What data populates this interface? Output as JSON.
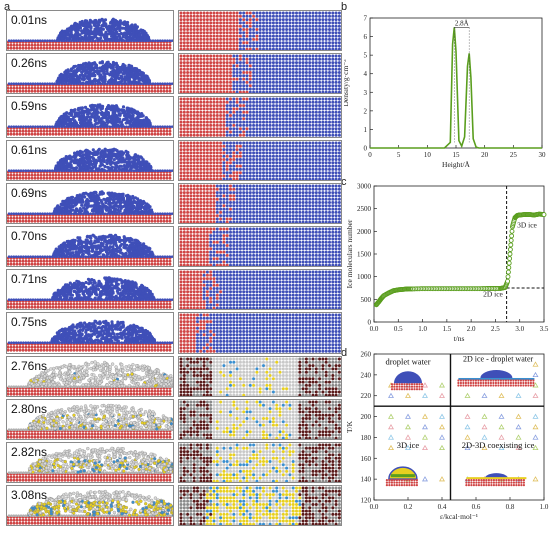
{
  "panel_labels": {
    "a": "a",
    "b": "b",
    "c": "c",
    "d": "d"
  },
  "snapshots": [
    {
      "time": "0.01ns",
      "phase": "liquid",
      "top_fraction": 0.0
    },
    {
      "time": "0.26ns",
      "phase": "liquid",
      "top_fraction": 0.0
    },
    {
      "time": "0.59ns",
      "phase": "liquid",
      "top_fraction": 0.0
    },
    {
      "time": "0.61ns",
      "phase": "liquid",
      "top_fraction": 0.0
    },
    {
      "time": "0.69ns",
      "phase": "liquid",
      "top_fraction": 0.0
    },
    {
      "time": "0.70ns",
      "phase": "liquid",
      "top_fraction": 0.0
    },
    {
      "time": "0.71ns",
      "phase": "liquid",
      "top_fraction": 0.0
    },
    {
      "time": "0.75ns",
      "phase": "liquid",
      "top_fraction": 0.0
    },
    {
      "time": "2.76ns",
      "phase": "ice",
      "top_fraction": 0.05
    },
    {
      "time": "2.80ns",
      "phase": "ice",
      "top_fraction": 0.2
    },
    {
      "time": "2.82ns",
      "phase": "ice",
      "top_fraction": 0.35
    },
    {
      "time": "3.08ns",
      "phase": "ice",
      "top_fraction": 0.6
    }
  ],
  "colors": {
    "water": "#3f4fb8",
    "substrate": "#d04545",
    "ice": "#d9d9d9",
    "ice_yellow": "#e8d020",
    "ice_blue": "#3a8fd0",
    "green": "#5a9e1e"
  },
  "chart_data": [
    {
      "type": "line",
      "panel": "b",
      "xlabel": "Height/Å",
      "ylabel": "Density/g·cm⁻³",
      "xlim": [
        0,
        30
      ],
      "ylim": [
        0,
        7
      ],
      "xticks": [
        0,
        5,
        10,
        15,
        20,
        25,
        30
      ],
      "yticks": [
        0,
        1,
        2,
        3,
        4,
        5,
        6,
        7
      ],
      "annotation": "2.8Å",
      "series": [
        {
          "x": [
            0,
            13,
            14,
            14.4,
            14.7,
            15,
            15.5,
            16,
            16.5,
            17,
            17.3,
            17.6,
            18,
            18.5,
            19,
            30
          ],
          "values": [
            0,
            0,
            0.3,
            5.6,
            6.5,
            5.2,
            0.4,
            0.1,
            0.6,
            4.4,
            5.1,
            3.8,
            0.5,
            0.05,
            0,
            0
          ]
        }
      ]
    },
    {
      "type": "scatter",
      "panel": "c",
      "xlabel": "t/ns",
      "ylabel": "Ice moleculars number",
      "xlim": [
        0,
        3.5
      ],
      "ylim": [
        0,
        3000
      ],
      "xticks": [
        "0.0",
        "0.5",
        "1.0",
        "1.5",
        "2.0",
        "2.5",
        "3.0",
        "3.5"
      ],
      "yticks": [
        "0",
        "500",
        "1000",
        "1500",
        "2000",
        "2500",
        "3000"
      ],
      "annotations": [
        "2D ice",
        "3D ice"
      ],
      "reference_lines": {
        "x": 2.73,
        "y": 750
      },
      "series": [
        {
          "x": [
            0.05,
            0.1,
            0.15,
            0.2,
            0.3,
            0.4,
            0.5,
            0.6,
            0.7,
            0.8,
            1.0,
            1.2,
            1.4,
            1.6,
            1.8,
            2.0,
            2.2,
            2.4,
            2.6,
            2.7,
            2.75,
            2.8,
            2.85,
            2.9,
            2.95,
            3.0,
            3.1,
            3.2,
            3.3,
            3.4,
            3.5
          ],
          "values": [
            380,
            450,
            520,
            580,
            640,
            690,
            710,
            720,
            730,
            730,
            735,
            735,
            735,
            735,
            735,
            735,
            735,
            740,
            740,
            760,
            900,
            1500,
            2100,
            2300,
            2350,
            2360,
            2370,
            2370,
            2360,
            2380,
            2370
          ]
        }
      ]
    },
    {
      "type": "scatter",
      "panel": "d",
      "xlabel": "ε/kcal·mol⁻¹",
      "ylabel": "T/K",
      "xlim": [
        0,
        1.0
      ],
      "ylim": [
        120,
        260
      ],
      "xticks": [
        "0.0",
        "0.2",
        "0.4",
        "0.6",
        "0.8",
        "1.0"
      ],
      "yticks": [
        "120",
        "140",
        "160",
        "180",
        "200",
        "220",
        "240",
        "260"
      ],
      "regions": [
        "droplet water",
        "2D ice - droplet water",
        "3D  ice",
        "2D-3D coexisting ice"
      ],
      "boundaries": {
        "x": 0.45,
        "y": 210
      }
    }
  ]
}
